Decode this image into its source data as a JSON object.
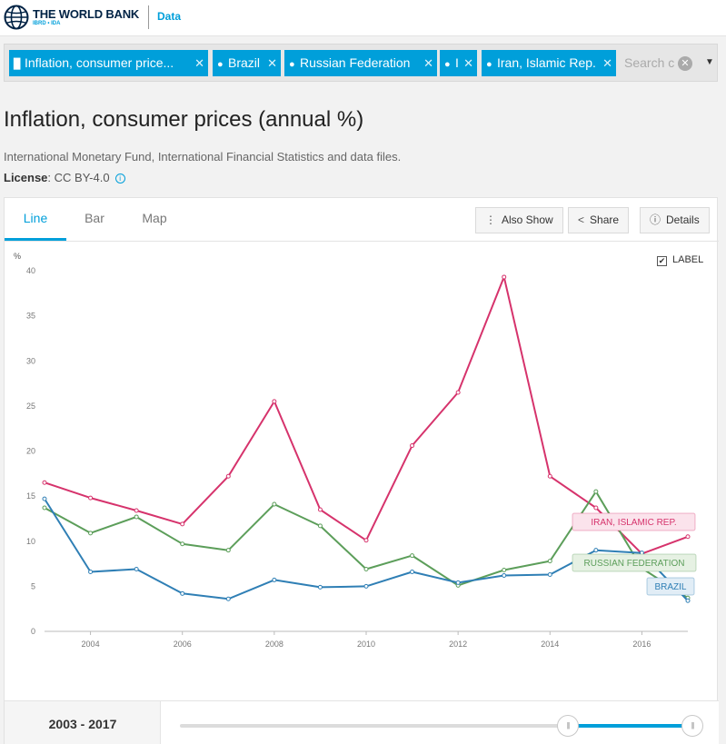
{
  "header": {
    "brand": "THE WORLD BANK",
    "brand_sub": "IBRD • IDA",
    "data_link": "Data"
  },
  "filters": {
    "chips": [
      {
        "icon": "bar-chart-icon",
        "label": "Inflation, consumer price..."
      },
      {
        "icon": "pin-icon",
        "label": "Brazil"
      },
      {
        "icon": "pin-icon",
        "label": "Russian Federation"
      },
      {
        "icon": "pin-icon",
        "label": "I"
      },
      {
        "icon": "pin-icon",
        "label": "Iran, Islamic Rep."
      }
    ],
    "search_placeholder": "Search c"
  },
  "page": {
    "title": "Inflation, consumer prices (annual %)",
    "source": "International Monetary Fund, International Financial Statistics and data files.",
    "license_label": "License",
    "license_value": ": CC BY-4.0"
  },
  "tabs": [
    "Line",
    "Bar",
    "Map"
  ],
  "active_tab": "Line",
  "toolbar": {
    "also_show": "Also Show",
    "share": "Share",
    "details": "Details"
  },
  "label_toggle": "LABEL",
  "range": {
    "label": "2003 - 2017"
  },
  "chart_data": {
    "type": "line",
    "y_unit": "%",
    "x": [
      2003,
      2004,
      2005,
      2006,
      2007,
      2008,
      2009,
      2010,
      2011,
      2012,
      2013,
      2014,
      2015,
      2016,
      2017
    ],
    "xlim": [
      2003,
      2017
    ],
    "ylim": [
      0,
      40
    ],
    "x_ticks": [
      2004,
      2006,
      2008,
      2010,
      2012,
      2014,
      2016
    ],
    "y_ticks": [
      0,
      5,
      10,
      15,
      20,
      25,
      30,
      35,
      40
    ],
    "grid": false,
    "series": [
      {
        "name": "IRAN, ISLAMIC REP.",
        "color": "#d6336c",
        "label_bg": "#fbe3ec",
        "values": [
          16.5,
          14.8,
          13.4,
          11.9,
          17.2,
          25.5,
          13.5,
          10.1,
          20.6,
          26.5,
          39.3,
          17.2,
          13.7,
          8.6,
          10.5
        ]
      },
      {
        "name": "RUSSIAN FEDERATION",
        "color": "#5c9e5a",
        "label_bg": "#e6f1e3",
        "values": [
          13.7,
          10.9,
          12.7,
          9.7,
          9.0,
          14.1,
          11.7,
          6.9,
          8.4,
          5.1,
          6.8,
          7.8,
          15.5,
          7.0,
          3.7
        ]
      },
      {
        "name": "BRAZIL",
        "color": "#2f7fb5",
        "label_bg": "#e1edf6",
        "values": [
          14.7,
          6.6,
          6.9,
          4.2,
          3.6,
          5.7,
          4.9,
          5.0,
          6.6,
          5.4,
          6.2,
          6.3,
          9.0,
          8.7,
          3.4
        ]
      }
    ]
  }
}
